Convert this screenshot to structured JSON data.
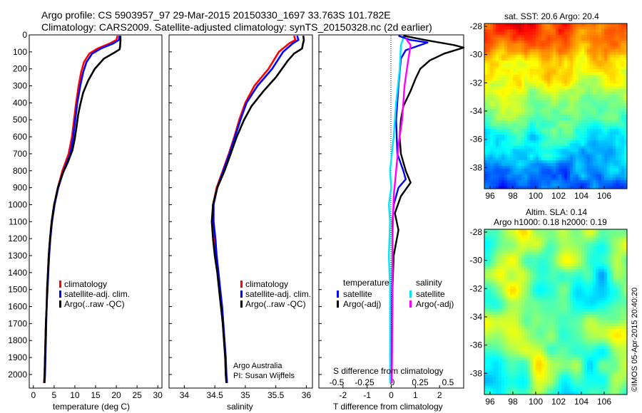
{
  "header": {
    "line1": "Argo profile: CS 5903957_97 29-Mar-2015 20150330_1697 33.763S 101.782E",
    "line2": "Climatology: CARS2009. Satellite-adjusted climatology: synTS_20150328.nc (2d earlier)"
  },
  "colors": {
    "climatology": "#ff0000",
    "satellite": "#0000ff",
    "argo": "#000000",
    "sal_sat": "#00e5ff",
    "sal_argo": "#ff00ff"
  },
  "chart_data": [
    {
      "type": "line",
      "id": "temperature",
      "xlabel": "temperature (deg C)",
      "xlim": [
        -1,
        31
      ],
      "ylim": [
        2080,
        0
      ],
      "xticks": [
        0,
        5,
        10,
        15,
        20,
        25,
        30
      ],
      "yticks": [
        0,
        100,
        200,
        300,
        400,
        500,
        600,
        700,
        800,
        900,
        1000,
        1100,
        1200,
        1300,
        1400,
        1500,
        1600,
        1700,
        1800,
        1900,
        2000
      ],
      "legend": [
        "climatology",
        "satellite-adj. clim.",
        "Argo(..raw -QC)"
      ],
      "series": [
        {
          "name": "climatology",
          "color": "#ff0000",
          "points": [
            [
              20.3,
              5
            ],
            [
              20.0,
              30
            ],
            [
              18.5,
              50
            ],
            [
              15.5,
              80
            ],
            [
              13.5,
              110
            ],
            [
              12.2,
              160
            ],
            [
              11.5,
              220
            ],
            [
              10.9,
              300
            ],
            [
              10.3,
              400
            ],
            [
              9.8,
              500
            ],
            [
              9.3,
              600
            ],
            [
              8.5,
              700
            ],
            [
              7.0,
              800
            ],
            [
              5.9,
              900
            ],
            [
              5.0,
              1000
            ],
            [
              4.4,
              1100
            ],
            [
              4.0,
              1200
            ],
            [
              3.7,
              1300
            ],
            [
              3.5,
              1400
            ],
            [
              3.3,
              1500
            ],
            [
              3.2,
              1600
            ],
            [
              3.0,
              1700
            ],
            [
              2.9,
              1800
            ],
            [
              2.8,
              1900
            ],
            [
              2.7,
              2000
            ],
            [
              2.6,
              2050
            ]
          ]
        },
        {
          "name": "satellite-adj. clim.",
          "color": "#0000ff",
          "points": [
            [
              20.8,
              5
            ],
            [
              20.6,
              30
            ],
            [
              19.3,
              50
            ],
            [
              16.3,
              80
            ],
            [
              14.2,
              110
            ],
            [
              12.8,
              160
            ],
            [
              12.0,
              220
            ],
            [
              11.3,
              300
            ],
            [
              10.6,
              400
            ],
            [
              10.1,
              500
            ],
            [
              9.6,
              600
            ],
            [
              8.9,
              700
            ],
            [
              7.3,
              800
            ],
            [
              6.0,
              900
            ],
            [
              5.1,
              1000
            ],
            [
              4.5,
              1100
            ],
            [
              4.1,
              1200
            ],
            [
              3.8,
              1300
            ],
            [
              3.6,
              1400
            ],
            [
              3.4,
              1500
            ],
            [
              3.2,
              1600
            ],
            [
              3.1,
              1700
            ],
            [
              3.0,
              1800
            ],
            [
              2.9,
              1900
            ],
            [
              2.8,
              2000
            ],
            [
              2.7,
              2050
            ]
          ]
        },
        {
          "name": "Argo(..raw -QC)",
          "color": "#000000",
          "points": [
            [
              21.0,
              5
            ],
            [
              21.0,
              30
            ],
            [
              20.9,
              70
            ],
            [
              20.8,
              85
            ],
            [
              19.5,
              105
            ],
            [
              17.0,
              140
            ],
            [
              14.8,
              200
            ],
            [
              13.2,
              270
            ],
            [
              12.0,
              340
            ],
            [
              11.3,
              410
            ],
            [
              10.8,
              470
            ],
            [
              10.4,
              540
            ],
            [
              10.0,
              610
            ],
            [
              9.4,
              680
            ],
            [
              8.3,
              750
            ],
            [
              7.0,
              820
            ],
            [
              5.9,
              900
            ],
            [
              5.0,
              1000
            ],
            [
              4.4,
              1100
            ],
            [
              4.0,
              1200
            ],
            [
              3.7,
              1300
            ],
            [
              3.5,
              1400
            ],
            [
              3.3,
              1500
            ],
            [
              3.2,
              1600
            ],
            [
              3.0,
              1700
            ],
            [
              2.9,
              1800
            ],
            [
              2.8,
              1900
            ],
            [
              2.7,
              2000
            ],
            [
              2.6,
              2050
            ]
          ]
        }
      ]
    },
    {
      "type": "line",
      "id": "salinity",
      "xlabel": "salinity",
      "xlim": [
        33.75,
        36.1
      ],
      "ylim": [
        2080,
        0
      ],
      "xticks": [
        34,
        34.5,
        35,
        35.5,
        36
      ],
      "legend": [
        "climatology",
        "satellite-adj. clim.",
        "Argo(..raw -QC)"
      ],
      "annotation": [
        "Argo Australia",
        "PI: Susan Wijffels"
      ],
      "series": [
        {
          "name": "climatology",
          "color": "#ff0000",
          "points": [
            [
              35.8,
              5
            ],
            [
              35.82,
              30
            ],
            [
              35.72,
              50
            ],
            [
              35.55,
              100
            ],
            [
              35.38,
              200
            ],
            [
              35.15,
              300
            ],
            [
              35.0,
              400
            ],
            [
              34.9,
              500
            ],
            [
              34.82,
              600
            ],
            [
              34.73,
              700
            ],
            [
              34.63,
              800
            ],
            [
              34.53,
              900
            ],
            [
              34.47,
              1000
            ],
            [
              34.47,
              1100
            ],
            [
              34.5,
              1200
            ],
            [
              34.52,
              1300
            ],
            [
              34.55,
              1400
            ],
            [
              34.58,
              1500
            ],
            [
              34.61,
              1600
            ],
            [
              34.63,
              1700
            ],
            [
              34.65,
              1800
            ],
            [
              34.67,
              1900
            ],
            [
              34.68,
              2000
            ],
            [
              34.69,
              2050
            ]
          ]
        },
        {
          "name": "satellite-adj. clim.",
          "color": "#0000ff",
          "points": [
            [
              35.85,
              5
            ],
            [
              35.87,
              30
            ],
            [
              35.78,
              50
            ],
            [
              35.62,
              100
            ],
            [
              35.44,
              200
            ],
            [
              35.2,
              300
            ],
            [
              35.02,
              400
            ],
            [
              34.92,
              500
            ],
            [
              34.83,
              600
            ],
            [
              34.74,
              700
            ],
            [
              34.64,
              800
            ],
            [
              34.54,
              900
            ],
            [
              34.48,
              1000
            ],
            [
              34.48,
              1100
            ],
            [
              34.51,
              1200
            ],
            [
              34.53,
              1300
            ],
            [
              34.56,
              1400
            ],
            [
              34.59,
              1500
            ],
            [
              34.62,
              1600
            ],
            [
              34.64,
              1700
            ],
            [
              34.66,
              1800
            ],
            [
              34.68,
              1900
            ],
            [
              34.69,
              2000
            ],
            [
              34.7,
              2050
            ]
          ]
        },
        {
          "name": "Argo(..raw -QC)",
          "color": "#000000",
          "points": [
            [
              35.95,
              5
            ],
            [
              35.96,
              30
            ],
            [
              35.94,
              60
            ],
            [
              35.93,
              80
            ],
            [
              35.8,
              110
            ],
            [
              35.7,
              150
            ],
            [
              35.5,
              250
            ],
            [
              35.3,
              330
            ],
            [
              35.1,
              420
            ],
            [
              34.98,
              500
            ],
            [
              34.86,
              600
            ],
            [
              34.76,
              700
            ],
            [
              34.66,
              800
            ],
            [
              34.54,
              900
            ],
            [
              34.47,
              1000
            ],
            [
              34.45,
              1100
            ],
            [
              34.47,
              1200
            ],
            [
              34.5,
              1300
            ],
            [
              34.54,
              1400
            ],
            [
              34.57,
              1500
            ],
            [
              34.6,
              1600
            ],
            [
              34.63,
              1700
            ],
            [
              34.65,
              1800
            ],
            [
              34.67,
              1900
            ],
            [
              34.68,
              2000
            ],
            [
              34.69,
              2050
            ]
          ]
        }
      ]
    },
    {
      "type": "line",
      "id": "difference",
      "xlabel": "T difference from climatology",
      "xlabel_top": "S difference from climatology",
      "xlim": [
        -3,
        3
      ],
      "ylim": [
        2080,
        0
      ],
      "xticks": [
        -2,
        -1,
        0,
        1,
        2
      ],
      "xticks_top": [
        "-0.5",
        "-0.25",
        "0",
        "0.25",
        "0.5"
      ],
      "legend_temp_title": "temperature",
      "legend_sal_title": "salinity",
      "legend_temp": [
        "satellite",
        "Argo(-adj)"
      ],
      "legend_sal": [
        "satellite",
        "Argo(-adj)"
      ],
      "series": [
        {
          "name": "T satellite",
          "color": "#0000ff",
          "points": [
            [
              0.3,
              5
            ],
            [
              0.8,
              30
            ],
            [
              1.5,
              45
            ],
            [
              1.0,
              70
            ],
            [
              0.6,
              90
            ],
            [
              0.4,
              140
            ],
            [
              0.3,
              300
            ],
            [
              0.2,
              500
            ],
            [
              0.25,
              700
            ],
            [
              0.5,
              800
            ],
            [
              0.6,
              850
            ],
            [
              0.3,
              900
            ],
            [
              0.1,
              1000
            ],
            [
              0.05,
              1100
            ],
            [
              0.05,
              1300
            ],
            [
              0.03,
              1600
            ],
            [
              0.02,
              2050
            ]
          ]
        },
        {
          "name": "T Argo",
          "color": "#000000",
          "points": [
            [
              0.5,
              5
            ],
            [
              1.4,
              30
            ],
            [
              2.6,
              60
            ],
            [
              3.0,
              75
            ],
            [
              2.2,
              110
            ],
            [
              1.6,
              150
            ],
            [
              1.2,
              200
            ],
            [
              1.0,
              260
            ],
            [
              0.8,
              330
            ],
            [
              0.5,
              420
            ],
            [
              0.4,
              500
            ],
            [
              0.35,
              600
            ],
            [
              0.4,
              700
            ],
            [
              0.6,
              800
            ],
            [
              0.8,
              870
            ],
            [
              0.4,
              950
            ],
            [
              0.15,
              1050
            ],
            [
              0.3,
              1150
            ],
            [
              0.1,
              1300
            ],
            [
              0.05,
              1500
            ],
            [
              0.03,
              1800
            ],
            [
              0.02,
              2050
            ]
          ]
        },
        {
          "name": "S satellite",
          "color": "#00e5ff",
          "points": [
            [
              0.5,
              20
            ],
            [
              0.4,
              60
            ],
            [
              0.35,
              200
            ],
            [
              0.2,
              400
            ],
            [
              0.1,
              600
            ],
            [
              -0.05,
              800
            ],
            [
              0.0,
              900
            ],
            [
              -0.1,
              1000
            ],
            [
              -0.05,
              1100
            ],
            [
              -0.1,
              1300
            ],
            [
              -0.05,
              1500
            ],
            [
              -0.05,
              2050
            ]
          ]
        },
        {
          "name": "S Argo",
          "color": "#ff00ff",
          "points": [
            [
              0.6,
              20
            ],
            [
              0.8,
              60
            ],
            [
              0.7,
              150
            ],
            [
              0.55,
              300
            ],
            [
              0.45,
              500
            ],
            [
              0.3,
              650
            ],
            [
              0.2,
              800
            ],
            [
              0.1,
              950
            ],
            [
              0.05,
              1200
            ],
            [
              0.05,
              1600
            ],
            [
              0.02,
              2050
            ]
          ]
        }
      ]
    },
    {
      "type": "heatmap",
      "id": "sst-map",
      "title": "sat. SST: 20.6  Argo: 20.4",
      "xticks": [
        96,
        98,
        100,
        102,
        104,
        106
      ],
      "yticks": [
        -28,
        -30,
        -32,
        -34,
        -36,
        -38
      ],
      "xlim": [
        95.5,
        108
      ],
      "ylim": [
        -39.5,
        -27.8
      ]
    },
    {
      "type": "heatmap",
      "id": "sla-map",
      "title": "Altim. SLA: 0.14",
      "subtitle": "Argo h1000: 0.18  h2000: 0.19",
      "xticks": [
        96,
        98,
        100,
        102,
        104,
        106
      ],
      "yticks": [
        -28,
        -30,
        -32,
        -34,
        -36,
        -38
      ],
      "xlim": [
        95.5,
        108
      ],
      "ylim": [
        -39.5,
        -27.8
      ]
    }
  ],
  "footer": {
    "credit": "©IMOS 05-Apr-2015 20:40:20"
  }
}
